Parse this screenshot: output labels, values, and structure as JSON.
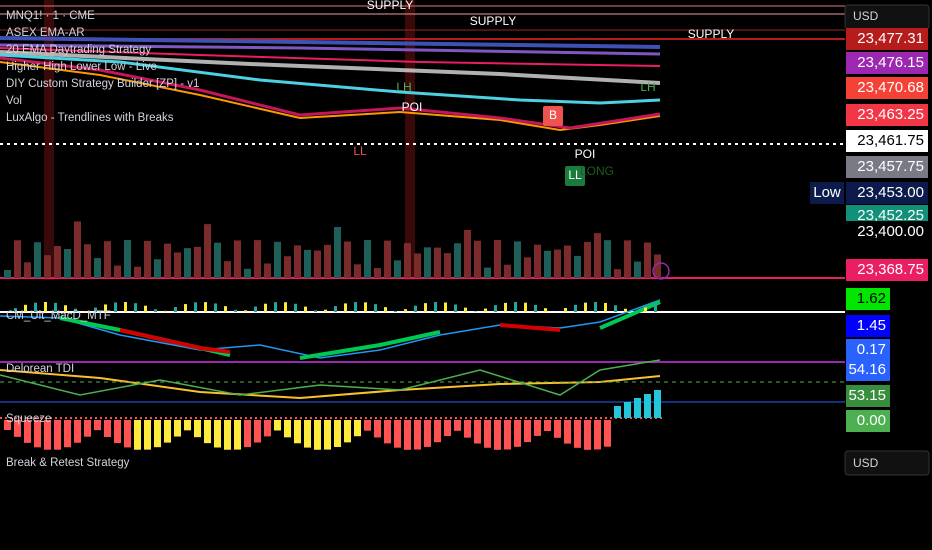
{
  "header": {
    "symbol": "MNQ1! · 1 · CME"
  },
  "indicators": [
    "ASEX EMA-AR",
    "20 EMA Daytrading Strategy",
    "Higher High Lower Low - Live",
    "DIY Custom Strategy Builder  [ZP] - v1",
    "Vol",
    "LuxAlgo - Trendlines with Breaks"
  ],
  "panes": [
    "CM_Ult_MacD_MTF",
    "Delorean TDI",
    "Squeeze",
    "Break & Retest Strategy"
  ],
  "price_scale": {
    "currency": "USD",
    "labels": [
      {
        "text": "23,477.31",
        "color": "#b71c1c",
        "text_color": "#ffffff"
      },
      {
        "text": "23,476.15",
        "color": "#9c27b0",
        "text_color": "#ffffff"
      },
      {
        "text": "23,470.68",
        "color": "#f44336",
        "text_color": "#ffffff"
      },
      {
        "text": "23,463.25",
        "color": "#f23645",
        "text_color": "#ffffff"
      },
      {
        "text": "23,461.75",
        "color": "#ffffff",
        "text_color": "#000000"
      },
      {
        "text": "23,457.75",
        "color": "#787b86",
        "text_color": "#ffffff"
      },
      {
        "text": "23,453.00",
        "color": "#0d1b4c",
        "text_color": "#ffffff"
      },
      {
        "text": "23,452.25",
        "color": "#11907a",
        "text_color": "#ffffff"
      },
      {
        "text": "23,400.00",
        "color": "#000000",
        "text_color": "#ffffff"
      },
      {
        "text": "23,368.75",
        "color": "#e91e63",
        "text_color": "#ffffff"
      }
    ]
  },
  "low_badge": "Low",
  "pane_scale": [
    {
      "text": "1.62",
      "color": "#00e600",
      "text_color": "#000000"
    },
    {
      "text": "1.45",
      "color": "#0000ff",
      "text_color": "#ffffff"
    },
    {
      "text": "0.17",
      "color": "#2962ff",
      "text_color": "#ffffff"
    },
    {
      "text": "54.16",
      "color": "#2962ff",
      "text_color": "#ffffff"
    },
    {
      "text": "53.15",
      "color": "#388e3c",
      "text_color": "#ffffff"
    },
    {
      "text": "0.00",
      "color": "#4caf50",
      "text_color": "#ffffff"
    }
  ],
  "annotations": [
    "SUPPLY",
    "SUPPLY",
    "SUPPLY",
    "LH",
    "LH",
    "POI",
    "POI",
    "LL",
    "LL",
    "B",
    "LONG"
  ],
  "bottom_currency": "USD"
}
